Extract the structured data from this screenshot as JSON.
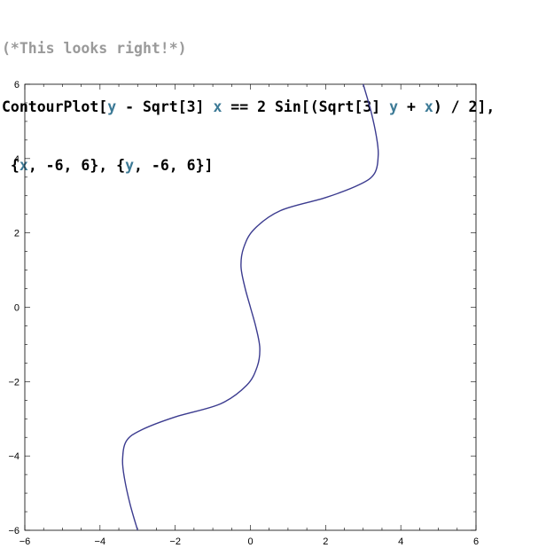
{
  "notebook": {
    "comment": "(*This looks right!*)",
    "code_lines": [
      [
        {
          "t": "ContourPlot[",
          "c": ""
        },
        {
          "t": "y",
          "c": "var"
        },
        {
          "t": " - Sqrt[3] ",
          "c": ""
        },
        {
          "t": "x",
          "c": "var"
        },
        {
          "t": " == 2 Sin[(Sqrt[3] ",
          "c": ""
        },
        {
          "t": "y",
          "c": "var"
        },
        {
          "t": " + ",
          "c": ""
        },
        {
          "t": "x",
          "c": "var"
        },
        {
          "t": ") / 2],",
          "c": ""
        }
      ],
      [
        {
          "t": " {",
          "c": ""
        },
        {
          "t": "x",
          "c": "var"
        },
        {
          "t": ", -6, 6}, {",
          "c": ""
        },
        {
          "t": "y",
          "c": "var"
        },
        {
          "t": ", -6, 6}]",
          "c": ""
        }
      ]
    ],
    "colors": {
      "comment": "#9a9a9a",
      "variable": "#3c7a96",
      "curve": "#3b3b8f",
      "frame": "#000000"
    }
  },
  "chart_data": {
    "type": "line",
    "title": "",
    "xlabel": "",
    "ylabel": "",
    "xlim": [
      -6,
      6
    ],
    "ylim": [
      -6,
      6
    ],
    "x_ticks": [
      -6,
      -4,
      -2,
      0,
      2,
      4,
      6
    ],
    "y_ticks": [
      -6,
      -4,
      -2,
      0,
      2,
      4,
      6
    ],
    "x_tick_labels": [
      "−6",
      "−4",
      "−2",
      "0",
      "2",
      "4",
      "6"
    ],
    "y_tick_labels": [
      "−6",
      "−4",
      "−2",
      "0",
      "2",
      "4",
      "6"
    ],
    "grid": false,
    "series": [
      {
        "x": [
          -3.0,
          -3.2,
          -3.35,
          -3.4,
          -3.3,
          -2.9,
          -2.0,
          -0.8,
          -0.1,
          0.18,
          0.25,
          0.15,
          0.0,
          -0.15,
          -0.25,
          -0.18,
          0.1,
          0.8,
          2.0,
          2.9,
          3.3,
          3.4,
          3.35,
          3.2,
          3.0
        ],
        "y": [
          -6.0,
          -5.3,
          -4.6,
          -4.1,
          -3.6,
          -3.3,
          -2.95,
          -2.6,
          -2.1,
          -1.6,
          -1.1,
          -0.55,
          0.0,
          0.55,
          1.1,
          1.6,
          2.1,
          2.6,
          2.95,
          3.3,
          3.6,
          4.1,
          4.6,
          5.3,
          6.0
        ]
      }
    ]
  }
}
